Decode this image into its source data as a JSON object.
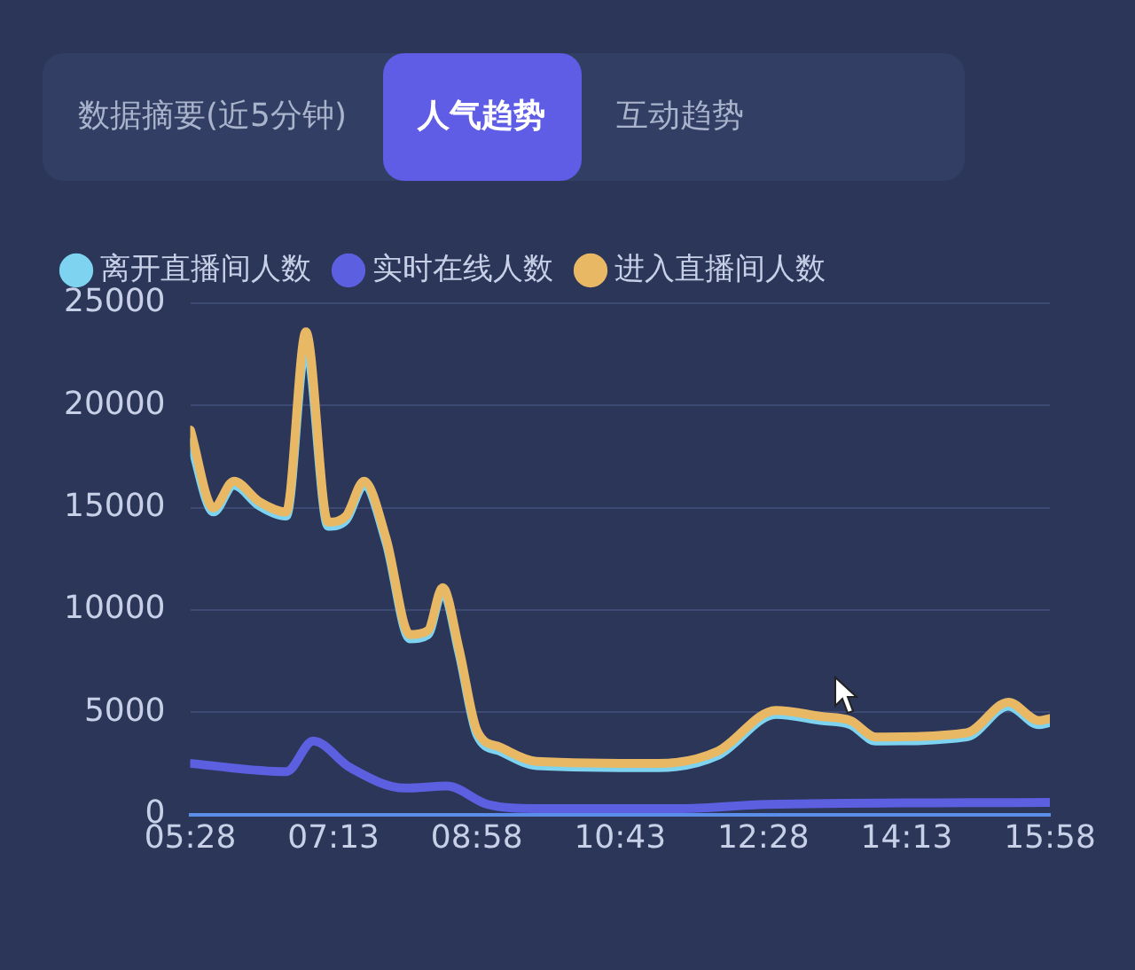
{
  "chart_data": {
    "type": "line",
    "annotations": [
      "数据摘要(近5分钟)",
      "人气趋势",
      "互动趋势"
    ],
    "xlim": [
      5.4667,
      15.9667
    ],
    "xticks": [
      {
        "value": 5.4667,
        "label": "05:28"
      },
      {
        "value": 7.2167,
        "label": "07:13"
      },
      {
        "value": 8.9667,
        "label": "08:58"
      },
      {
        "value": 10.7167,
        "label": "10:43"
      },
      {
        "value": 12.4667,
        "label": "12:28"
      },
      {
        "value": 14.2167,
        "label": "14:13"
      },
      {
        "value": 15.9667,
        "label": "15:58"
      }
    ],
    "ylim": [
      0,
      25000
    ],
    "yticks": [
      0,
      5000,
      10000,
      15000,
      20000,
      25000
    ],
    "grid": "y",
    "legend": "top left",
    "series": [
      {
        "name": "离开直播间人数",
        "color": "#7dd3f0",
        "x": [
          5.47,
          5.75,
          6.0,
          6.31,
          6.64,
          6.88,
          7.15,
          7.37,
          7.59,
          7.86,
          8.15,
          8.37,
          8.55,
          8.75,
          8.97,
          9.25,
          9.7,
          11.18,
          11.91,
          12.62,
          13.17,
          13.53,
          13.84,
          14.95,
          15.46,
          15.83,
          15.9667
        ],
        "values": [
          18200,
          14800,
          16100,
          15100,
          14600,
          22900,
          14100,
          14400,
          16100,
          13300,
          8600,
          8800,
          10900,
          7900,
          3900,
          3100,
          2400,
          2300,
          2900,
          4900,
          4600,
          4400,
          3600,
          3800,
          5300,
          4400,
          4500
        ]
      },
      {
        "name": "实时在线人数",
        "color": "#5b5fe0",
        "x": [
          5.47,
          6.64,
          6.97,
          7.42,
          8.09,
          8.6,
          9.1,
          9.7,
          11.5,
          12.5,
          15.9667
        ],
        "values": [
          2500,
          2100,
          3600,
          2300,
          1300,
          1400,
          500,
          300,
          300,
          500,
          600
        ]
      },
      {
        "name": "进入直播间人数",
        "color": "#e8b865",
        "x": [
          5.47,
          5.75,
          6.0,
          6.31,
          6.64,
          6.88,
          7.15,
          7.37,
          7.59,
          7.86,
          8.15,
          8.37,
          8.55,
          8.75,
          8.97,
          9.25,
          9.7,
          11.18,
          11.91,
          12.62,
          13.17,
          13.53,
          13.84,
          14.95,
          15.46,
          15.83,
          15.9667
        ],
        "values": [
          18800,
          15000,
          16300,
          15300,
          14800,
          23600,
          14300,
          14600,
          16300,
          13500,
          8800,
          9000,
          11100,
          8100,
          4100,
          3300,
          2600,
          2500,
          3100,
          5100,
          4800,
          4600,
          3800,
          4000,
          5500,
          4600,
          4700
        ]
      }
    ]
  }
}
